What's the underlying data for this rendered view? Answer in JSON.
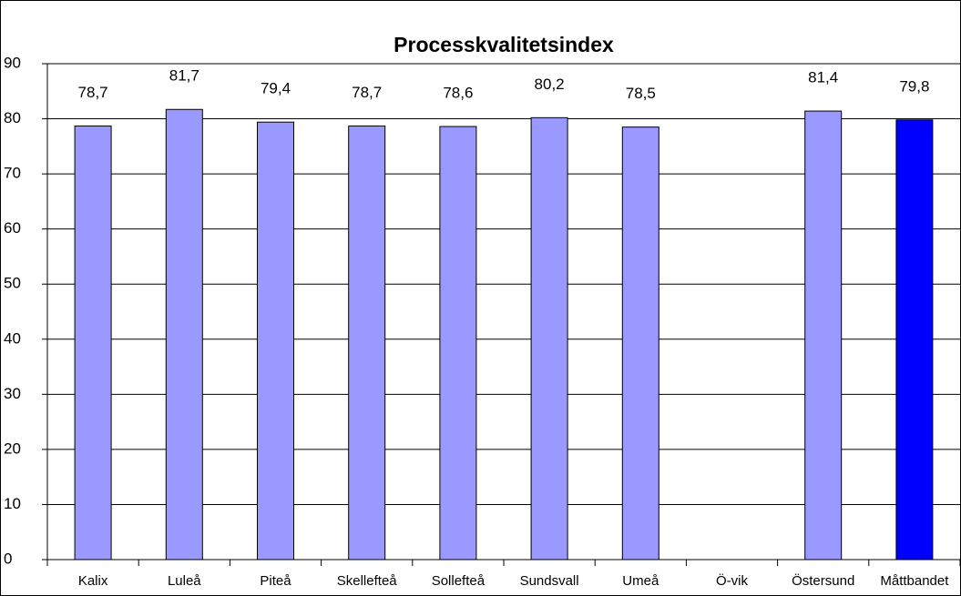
{
  "chart_data": {
    "type": "bar",
    "title": "Processkvalitetsindex",
    "categories": [
      "Kalix",
      "Luleå",
      "Piteå",
      "Skellefteå",
      "Sollefteå",
      "Sundsvall",
      "Umeå",
      "Ö-vik",
      "Östersund",
      "Måttbandet"
    ],
    "values": [
      78.7,
      81.7,
      79.4,
      78.7,
      78.6,
      80.2,
      78.5,
      null,
      81.4,
      79.8
    ],
    "value_labels": [
      "78,7",
      "81,7",
      "79,4",
      "78,7",
      "78,6",
      "80,2",
      "78,5",
      null,
      "81,4",
      "79,8"
    ],
    "colors": [
      "#9999ff",
      "#9999ff",
      "#9999ff",
      "#9999ff",
      "#9999ff",
      "#9999ff",
      "#9999ff",
      null,
      "#9999ff",
      "#0000ff"
    ],
    "ylim": [
      0,
      90
    ],
    "yticks": [
      0,
      10,
      20,
      30,
      40,
      50,
      60,
      70,
      80,
      90
    ],
    "grid": true
  }
}
